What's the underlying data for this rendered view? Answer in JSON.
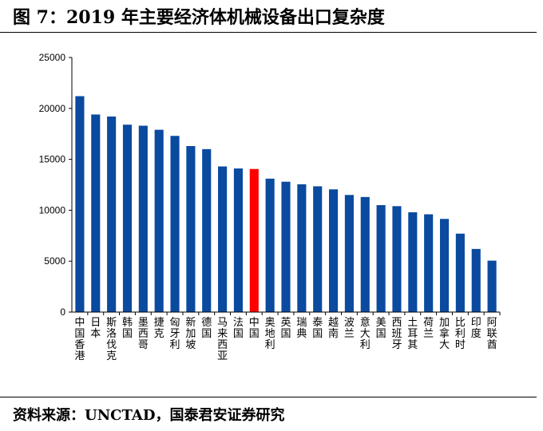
{
  "figure": {
    "title": "图 7：2019 年主要经济体机械设备出口复杂度",
    "source": "资料来源：UNCTAD，国泰君安证券研究"
  },
  "colors": {
    "bar": "#0a4a9f",
    "highlight": "#ff0000",
    "axis": "#000000"
  },
  "chart_data": {
    "type": "bar",
    "title": "",
    "xlabel": "",
    "ylabel": "",
    "ylim": [
      0,
      25000
    ],
    "yticks": [
      "0",
      "5000",
      "10000",
      "15000",
      "20000",
      "25000"
    ],
    "grid": false,
    "legend": "none",
    "highlight_category": "中国",
    "categories": [
      "中国香港",
      "日本",
      "斯洛伐克",
      "韩国",
      "墨西哥",
      "捷克",
      "匈牙利",
      "新加坡",
      "德国",
      "马来西亚",
      "法国",
      "中国",
      "奥地利",
      "英国",
      "瑞典",
      "泰国",
      "越南",
      "波兰",
      "意大利",
      "美国",
      "西班牙",
      "土耳其",
      "荷兰",
      "加拿大",
      "比利时",
      "印度",
      "阿联酋"
    ],
    "values": [
      21200,
      19400,
      19200,
      18400,
      18300,
      17900,
      17300,
      16300,
      16000,
      14300,
      14100,
      14050,
      13100,
      12800,
      12550,
      12350,
      12050,
      11500,
      11300,
      10500,
      10400,
      9800,
      9600,
      9150,
      7700,
      6200,
      5050
    ]
  }
}
